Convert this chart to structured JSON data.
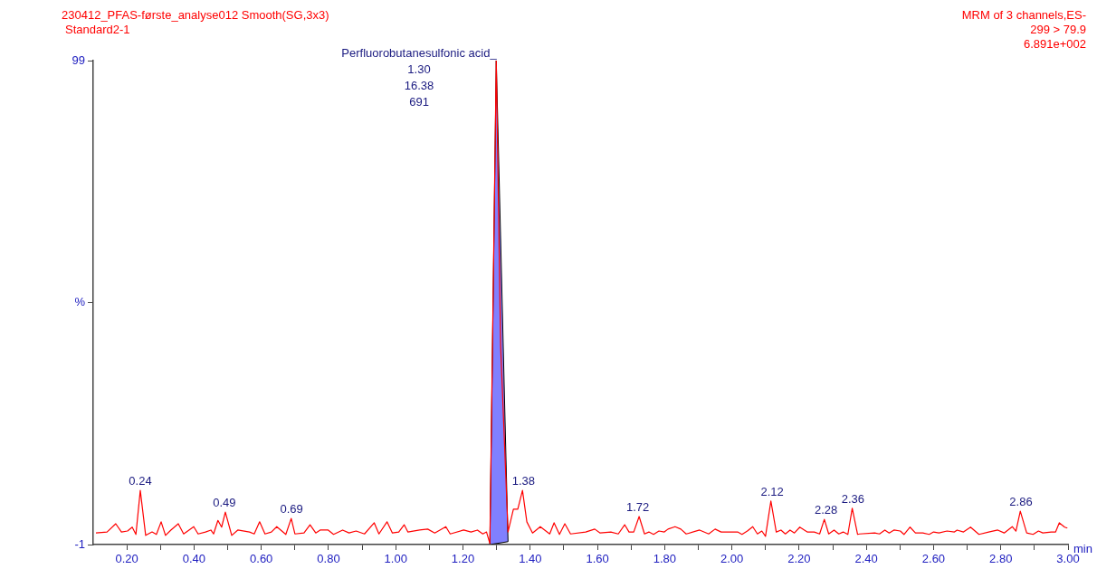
{
  "chart_data": {
    "type": "line",
    "title": "230412_PFAS-første_analyse012 Smooth(SG,3x3)",
    "subtitle": "Standard2-1",
    "xlabel": "min",
    "annotations": [
      "MRM of 3 channels,ES-",
      "299 > 79.9",
      "6.891e+002",
      {
        "text": "Perfluorobutanesulfonic acid_\n1.30\n16.38\n691",
        "x": 1.3,
        "y": 99
      },
      {
        "text": "0.24",
        "x": 0.24,
        "y": 10.2
      },
      {
        "text": "0.49",
        "x": 0.49,
        "y": 5.7
      },
      {
        "text": "0.69",
        "x": 0.69,
        "y": 4.4
      },
      {
        "text": "1.38",
        "x": 1.38,
        "y": 10.2
      },
      {
        "text": "1.72",
        "x": 1.72,
        "y": 4.8
      },
      {
        "text": "2.12",
        "x": 2.12,
        "y": 8.0
      },
      {
        "text": "2.28",
        "x": 2.28,
        "y": 4.2
      },
      {
        "text": "2.36",
        "x": 2.36,
        "y": 6.5
      },
      {
        "text": "2.86",
        "x": 2.86,
        "y": 5.9
      }
    ],
    "xlim": [
      0.1,
      3.0
    ],
    "xticks": [
      {
        "value": 0.2,
        "label": "0.20"
      },
      {
        "value": 0.3,
        "label": null
      },
      {
        "value": 0.4,
        "label": "0.40"
      },
      {
        "value": 0.5,
        "label": null
      },
      {
        "value": 0.6,
        "label": "0.60"
      },
      {
        "value": 0.7,
        "label": null
      },
      {
        "value": 0.8,
        "label": "0.80"
      },
      {
        "value": 0.9,
        "label": null
      },
      {
        "value": 1.0,
        "label": "1.00"
      },
      {
        "value": 1.1,
        "label": null
      },
      {
        "value": 1.2,
        "label": "1.20"
      },
      {
        "value": 1.3,
        "label": null
      },
      {
        "value": 1.4,
        "label": "1.40"
      },
      {
        "value": 1.5,
        "label": null
      },
      {
        "value": 1.6,
        "label": "1.60"
      },
      {
        "value": 1.7,
        "label": null
      },
      {
        "value": 1.8,
        "label": "1.80"
      },
      {
        "value": 1.9,
        "label": null
      },
      {
        "value": 2.0,
        "label": "2.00"
      },
      {
        "value": 2.1,
        "label": null
      },
      {
        "value": 2.2,
        "label": "2.20"
      },
      {
        "value": 2.3,
        "label": null
      },
      {
        "value": 2.4,
        "label": "2.40"
      },
      {
        "value": 2.5,
        "label": null
      },
      {
        "value": 2.6,
        "label": "2.60"
      },
      {
        "value": 2.7,
        "label": null
      },
      {
        "value": 2.8,
        "label": "2.80"
      },
      {
        "value": 2.9,
        "label": null
      },
      {
        "value": 3.0,
        "label": "3.00"
      }
    ],
    "ylim": [
      -1,
      99
    ],
    "yticks": [
      -1,
      {
        "value": 49,
        "label": "%"
      },
      99
    ],
    "series": [
      {
        "color": "#ff0000",
        "x": [
          0.108,
          0.141,
          0.167,
          0.184,
          0.202,
          0.216,
          0.227,
          0.24,
          0.256,
          0.275,
          0.288,
          0.302,
          0.315,
          0.331,
          0.353,
          0.369,
          0.399,
          0.412,
          0.434,
          0.45,
          0.458,
          0.471,
          0.482,
          0.493,
          0.512,
          0.53,
          0.565,
          0.579,
          0.595,
          0.611,
          0.63,
          0.646,
          0.673,
          0.689,
          0.7,
          0.727,
          0.745,
          0.762,
          0.775,
          0.799,
          0.815,
          0.842,
          0.861,
          0.882,
          0.907,
          0.936,
          0.95,
          0.974,
          0.99,
          1.009,
          1.025,
          1.036,
          1.071,
          1.095,
          1.116,
          1.149,
          1.162,
          1.202,
          1.224,
          1.243,
          1.259,
          1.27,
          1.28,
          1.299,
          1.312,
          1.334,
          1.35,
          1.363,
          1.377,
          1.39,
          1.407,
          1.43,
          1.458,
          1.471,
          1.487,
          1.503,
          1.52,
          1.565,
          1.592,
          1.608,
          1.64,
          1.662,
          1.681,
          1.694,
          1.708,
          1.724,
          1.74,
          1.753,
          1.767,
          1.783,
          1.799,
          1.81,
          1.831,
          1.848,
          1.864,
          1.904,
          1.931,
          1.95,
          1.968,
          2.017,
          2.03,
          2.046,
          2.062,
          2.076,
          2.089,
          2.1,
          2.116,
          2.132,
          2.146,
          2.159,
          2.173,
          2.186,
          2.202,
          2.224,
          2.245,
          2.261,
          2.275,
          2.288,
          2.304,
          2.318,
          2.331,
          2.345,
          2.358,
          2.374,
          2.38,
          2.425,
          2.439,
          2.455,
          2.468,
          2.482,
          2.501,
          2.512,
          2.53,
          2.546,
          2.568,
          2.587,
          2.6,
          2.616,
          2.64,
          2.662,
          2.67,
          2.689,
          2.71,
          2.735,
          2.764,
          2.791,
          2.81,
          2.834,
          2.845,
          2.858,
          2.877,
          2.896,
          2.912,
          2.925,
          2.95,
          2.963,
          2.974,
          2.99,
          2.998
        ],
        "values": [
          1.4,
          1.6,
          3.3,
          1.6,
          1.8,
          2.6,
          1.1,
          10.2,
          0.9,
          1.6,
          1.1,
          3.7,
          0.9,
          2.0,
          3.3,
          1.2,
          2.7,
          1.2,
          1.6,
          2.0,
          1.2,
          4.0,
          2.6,
          5.7,
          0.9,
          2.0,
          1.6,
          1.2,
          3.7,
          1.2,
          1.6,
          2.7,
          1.1,
          4.4,
          1.2,
          1.4,
          3.1,
          1.4,
          2.0,
          2.0,
          1.1,
          2.0,
          1.4,
          1.8,
          1.2,
          3.5,
          1.2,
          3.7,
          1.4,
          1.6,
          3.1,
          1.6,
          2.0,
          2.2,
          1.4,
          2.7,
          1.2,
          2.0,
          1.6,
          2.0,
          1.2,
          1.6,
          -0.8,
          99,
          40,
          1.6,
          6.3,
          6.3,
          10.2,
          3.7,
          1.4,
          2.7,
          1.2,
          3.5,
          1.1,
          3.3,
          1.2,
          1.6,
          2.2,
          1.4,
          1.6,
          1.2,
          3.1,
          1.6,
          1.6,
          4.8,
          1.2,
          1.6,
          1.1,
          1.8,
          1.6,
          2.2,
          2.7,
          2.2,
          1.2,
          2.0,
          1.2,
          2.2,
          1.6,
          1.6,
          1.1,
          1.8,
          2.7,
          1.2,
          1.8,
          0.7,
          8.0,
          1.6,
          2.0,
          1.2,
          2.0,
          1.4,
          2.6,
          1.6,
          1.6,
          1.2,
          4.2,
          1.2,
          2.0,
          1.2,
          1.6,
          1.1,
          6.5,
          1.1,
          1.2,
          1.4,
          1.2,
          2.0,
          1.4,
          2.0,
          1.8,
          1.1,
          2.6,
          1.4,
          1.4,
          1.1,
          1.6,
          1.4,
          1.8,
          1.6,
          2.0,
          1.6,
          2.6,
          1.1,
          1.6,
          2.0,
          1.4,
          2.7,
          1.8,
          5.9,
          1.4,
          1.1,
          1.8,
          1.4,
          1.6,
          1.6,
          3.5,
          2.6,
          2.4
        ]
      },
      {
        "type": "area",
        "color": "#8080ff",
        "x": [
          1.28,
          1.299,
          1.334,
          1.28
        ],
        "values": [
          -1,
          99,
          -0.4,
          -1
        ]
      }
    ]
  }
}
